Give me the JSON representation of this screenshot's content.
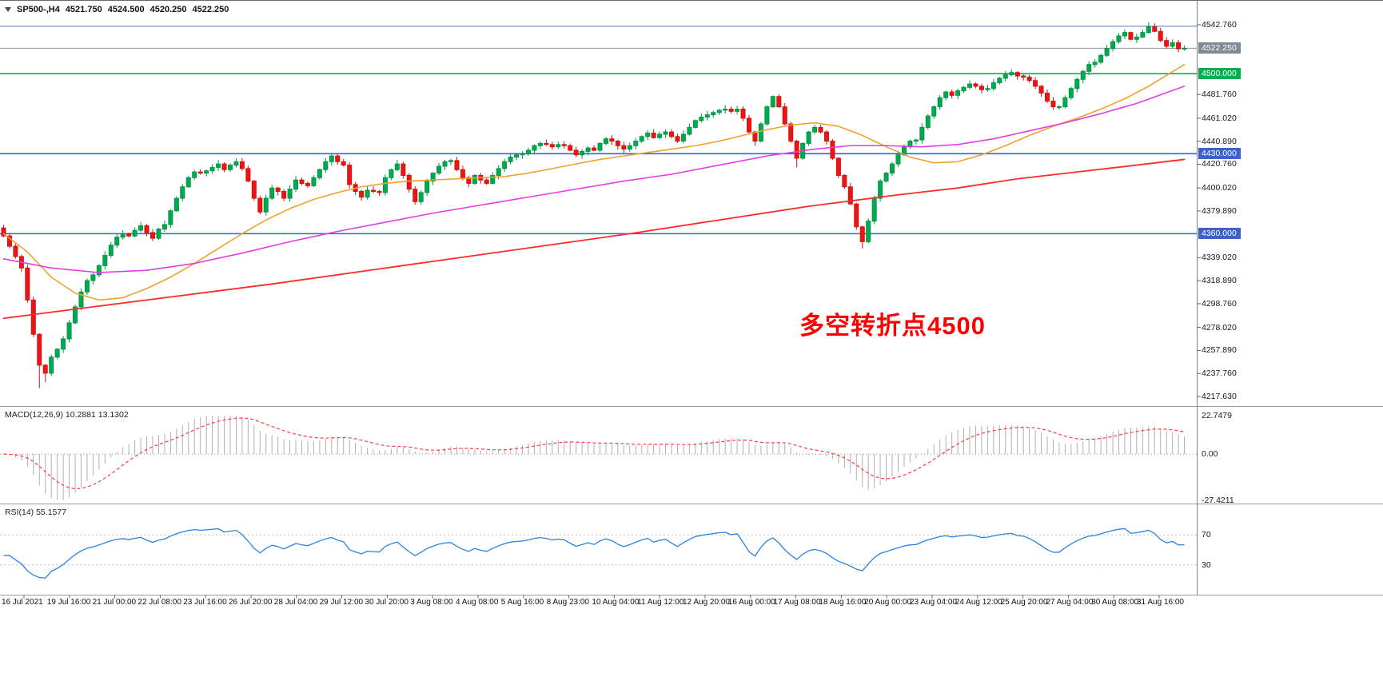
{
  "header": {
    "symbol_timeframe": "SP500-,H4",
    "open": "4521.750",
    "high": "4524.500",
    "low": "4520.250",
    "close": "4522.250"
  },
  "annotation": {
    "text": "多空转折点4500",
    "color": "#ff0000"
  },
  "colors": {
    "bull": "#00ab50",
    "bull_border": "#009545",
    "bear": "#ec1515",
    "bear_border": "#d41111",
    "ma_fast": "#eea32e",
    "ma_mid": "#e33ee3",
    "ma_slow": "#ff2a2a",
    "level_blue": "#3a62c8",
    "level_green": "#00b050",
    "level_top": "#6b87b8",
    "price_line": "#8a9aa8",
    "price_badge_bg": "#7f8a94",
    "macd_hist": "#b0b0b0",
    "macd_signal": "#ff3b3b",
    "rsi_line": "#2a84e0",
    "separator": "#9a9a9a",
    "axis_text": "#1a1a1a"
  },
  "indicators": {
    "macd": {
      "label": "MACD(12,26,9) 10.2881 13.1302",
      "fast": 12,
      "slow": 26,
      "signal": 9,
      "axis_max": "22.7479",
      "axis_zero": "0.00",
      "axis_min": "-27.4211"
    },
    "rsi": {
      "label": "RSI(14) 55.1577",
      "period": 14,
      "levels": [
        "70",
        "30"
      ]
    }
  },
  "chart_data": {
    "type": "candlestick",
    "title": "SP500- H4",
    "ylim": [
      4217.63,
      4542.76
    ],
    "current_price": 4522.25,
    "first_open": 4365,
    "closes": [
      4358,
      4349,
      4340,
      4330,
      4302,
      4272,
      4245,
      4238,
      4252,
      4259,
      4268,
      4282,
      4296,
      4309,
      4319,
      4324,
      4332,
      4341,
      4350,
      4357,
      4360,
      4358,
      4363,
      4367,
      4361,
      4356,
      4364,
      4368,
      4380,
      4391,
      4401,
      4409,
      4414,
      4413,
      4415,
      4418,
      4421,
      4416,
      4420,
      4423,
      4417,
      4406,
      4391,
      4379,
      4391,
      4400,
      4397,
      4391,
      4399,
      4407,
      4404,
      4402,
      4409,
      4416,
      4423,
      4428,
      4423,
      4420,
      4403,
      4397,
      4392,
      4398,
      4397,
      4396,
      4409,
      4416,
      4421,
      4411,
      4399,
      4388,
      4396,
      4406,
      4413,
      4419,
      4423,
      4424,
      4416,
      4409,
      4404,
      4411,
      4407,
      4404,
      4411,
      4417,
      4423,
      4427,
      4429,
      4430,
      4433,
      4437,
      4439,
      4438,
      4436,
      4438,
      4437,
      4433,
      4429,
      4432,
      4435,
      4433,
      4439,
      4443,
      4441,
      4437,
      4434,
      4437,
      4441,
      4445,
      4448,
      4444,
      4447,
      4449,
      4445,
      4441,
      4447,
      4453,
      4459,
      4462,
      4464,
      4466,
      4468,
      4469,
      4467,
      4469,
      4461,
      4449,
      4441,
      4456,
      4471,
      4480,
      4471,
      4456,
      4441,
      4426,
      4439,
      4449,
      4453,
      4449,
      4441,
      4426,
      4411,
      4401,
      4386,
      4366,
      4353,
      4371,
      4391,
      4406,
      4413,
      4421,
      4429,
      4436,
      4441,
      4442,
      4453,
      4463,
      4471,
      4479,
      4484,
      4481,
      4485,
      4488,
      4491,
      4489,
      4486,
      4487,
      4492,
      4496,
      4499,
      4501,
      4498,
      4497,
      4494,
      4489,
      4483,
      4476,
      4471,
      4471,
      4479,
      4487,
      4495,
      4502,
      4508,
      4510,
      4516,
      4522,
      4528,
      4533,
      4536,
      4530,
      4532,
      4536,
      4541,
      4537,
      4529,
      4524,
      4527,
      4521.75,
      4522.25
    ],
    "wick_overrides": {
      "6": [
        4273,
        4225
      ],
      "7": [
        4246,
        4230
      ],
      "126": [
        4450,
        4437
      ],
      "129": [
        4481,
        4470
      ],
      "133": [
        4442,
        4418
      ],
      "144": [
        4367,
        4347
      ],
      "192": [
        4545,
        4535
      ],
      "198": [
        4524.5,
        4520.25
      ]
    },
    "levels": [
      {
        "name": "resistance-high-line",
        "price": 4541.5,
        "color": "#6b87b8",
        "width": 1.2
      },
      {
        "name": "pivot-4500-line",
        "price": 4500,
        "color": "#00b050",
        "width": 1.6
      },
      {
        "name": "support-4430-line",
        "price": 4430,
        "color": "#3a62c8",
        "width": 1.6
      },
      {
        "name": "support-4360-line",
        "price": 4360,
        "color": "#3a62c8",
        "width": 1.6
      }
    ],
    "moving_averages": [
      {
        "name": "fast-ma",
        "color": "#eea32e",
        "points": [
          [
            0,
            4360
          ],
          [
            4,
            4344
          ],
          [
            8,
            4322
          ],
          [
            12,
            4308
          ],
          [
            16,
            4302
          ],
          [
            20,
            4304
          ],
          [
            24,
            4312
          ],
          [
            28,
            4322
          ],
          [
            32,
            4334
          ],
          [
            36,
            4347
          ],
          [
            40,
            4360
          ],
          [
            44,
            4372
          ],
          [
            48,
            4382
          ],
          [
            52,
            4390
          ],
          [
            56,
            4396
          ],
          [
            60,
            4401
          ],
          [
            64,
            4404
          ],
          [
            68,
            4406
          ],
          [
            72,
            4407
          ],
          [
            76,
            4408
          ],
          [
            80,
            4409
          ],
          [
            84,
            4410
          ],
          [
            88,
            4413
          ],
          [
            92,
            4417
          ],
          [
            96,
            4421
          ],
          [
            100,
            4425
          ],
          [
            104,
            4428
          ],
          [
            108,
            4431
          ],
          [
            112,
            4434
          ],
          [
            116,
            4437
          ],
          [
            120,
            4441
          ],
          [
            124,
            4446
          ],
          [
            128,
            4451
          ],
          [
            132,
            4455
          ],
          [
            136,
            4457
          ],
          [
            140,
            4454
          ],
          [
            144,
            4446
          ],
          [
            148,
            4436
          ],
          [
            152,
            4427
          ],
          [
            156,
            4422
          ],
          [
            160,
            4423
          ],
          [
            164,
            4429
          ],
          [
            168,
            4437
          ],
          [
            172,
            4446
          ],
          [
            176,
            4454
          ],
          [
            180,
            4461
          ],
          [
            184,
            4469
          ],
          [
            188,
            4478
          ],
          [
            192,
            4489
          ],
          [
            198,
            4508
          ]
        ]
      },
      {
        "name": "mid-ma",
        "color": "#e33ee3",
        "points": [
          [
            0,
            4338
          ],
          [
            8,
            4330
          ],
          [
            16,
            4326
          ],
          [
            24,
            4328
          ],
          [
            32,
            4334
          ],
          [
            40,
            4343
          ],
          [
            48,
            4353
          ],
          [
            56,
            4362
          ],
          [
            64,
            4370
          ],
          [
            72,
            4378
          ],
          [
            80,
            4385
          ],
          [
            88,
            4392
          ],
          [
            96,
            4399
          ],
          [
            104,
            4406
          ],
          [
            112,
            4412
          ],
          [
            120,
            4420
          ],
          [
            128,
            4428
          ],
          [
            136,
            4434
          ],
          [
            142,
            4437
          ],
          [
            148,
            4437
          ],
          [
            154,
            4436
          ],
          [
            160,
            4438
          ],
          [
            166,
            4443
          ],
          [
            172,
            4450
          ],
          [
            178,
            4457
          ],
          [
            184,
            4465
          ],
          [
            190,
            4474
          ],
          [
            198,
            4489
          ]
        ]
      },
      {
        "name": "slow-ma",
        "color": "#ff2a2a",
        "points": [
          [
            0,
            4286
          ],
          [
            15,
            4296
          ],
          [
            30,
            4306
          ],
          [
            45,
            4316
          ],
          [
            60,
            4327
          ],
          [
            75,
            4338
          ],
          [
            90,
            4349
          ],
          [
            105,
            4360
          ],
          [
            120,
            4372
          ],
          [
            135,
            4384
          ],
          [
            150,
            4394
          ],
          [
            160,
            4400
          ],
          [
            170,
            4408
          ],
          [
            180,
            4414
          ],
          [
            190,
            4420
          ],
          [
            198,
            4425
          ]
        ]
      }
    ],
    "price_axis_labels": [
      {
        "text": "4542.760",
        "price": 4542.76
      },
      {
        "text": "4481.760",
        "price": 4481.76
      },
      {
        "text": "4461.020",
        "price": 4461.02
      },
      {
        "text": "4440.890",
        "price": 4440.89
      },
      {
        "text": "4420.760",
        "price": 4420.76
      },
      {
        "text": "4400.020",
        "price": 4400.02
      },
      {
        "text": "4379.890",
        "price": 4379.89
      },
      {
        "text": "4339.020",
        "price": 4339.02
      },
      {
        "text": "4318.890",
        "price": 4318.89
      },
      {
        "text": "4298.760",
        "price": 4298.76
      },
      {
        "text": "4278.020",
        "price": 4278.02
      },
      {
        "text": "4257.890",
        "price": 4257.89
      },
      {
        "text": "4237.760",
        "price": 4237.76
      },
      {
        "text": "4217.630",
        "price": 4217.63
      }
    ],
    "price_level_badges": [
      {
        "text": "4522.250",
        "price": 4522.25,
        "bg": "#7f8a94"
      },
      {
        "text": "4500.000",
        "price": 4500,
        "bg": "#00b050"
      },
      {
        "text": "4430.000",
        "price": 4430,
        "bg": "#3a62c8"
      },
      {
        "text": "4360.000",
        "price": 4360,
        "bg": "#3a62c8"
      }
    ],
    "time_labels": [
      "16 Jul 2021",
      "19 Jul 16:00",
      "21 Jul 00:00",
      "22 Jul 08:00",
      "23 Jul 16:00",
      "26 Jul 20:00",
      "28 Jul 04:00",
      "29 Jul 12:00",
      "30 Jul 20:00",
      "3 Aug 08:00",
      "4 Aug 08:00",
      "5 Aug 16:00",
      "8 Aug 23:00",
      "10 Aug 04:00",
      "11 Aug 12:00",
      "12 Aug 20:00",
      "16 Aug 00:00",
      "17 Aug 08:00",
      "18 Aug 16:00",
      "20 Aug 00:00",
      "23 Aug 04:00",
      "24 Aug 12:00",
      "25 Aug 20:00",
      "27 Aug 04:00",
      "30 Aug 08:00",
      "31 Aug 16:00"
    ]
  }
}
